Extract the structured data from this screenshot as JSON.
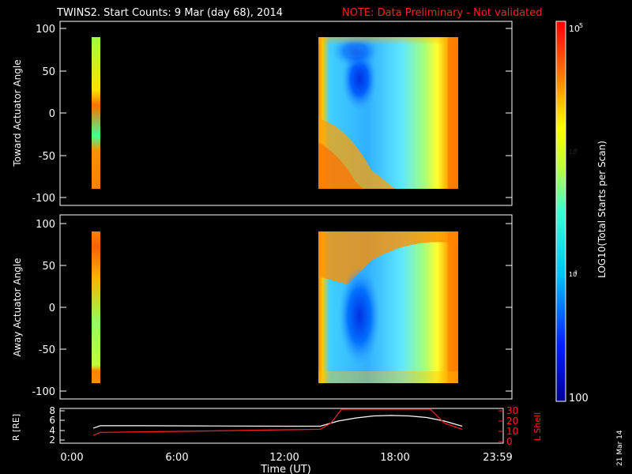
{
  "title": {
    "main": "TWINS2. Start Counts:  9 Mar (day  68), 2014",
    "note": "NOTE: Data Preliminary - Not validated"
  },
  "date_stamp": "21 Mar 14",
  "colorbar": {
    "label": "LOG10(Total Starts per Scan)",
    "ticks": [
      "100",
      "10^3",
      "10^4",
      "10^5"
    ],
    "top_label_main": "10",
    "top_label_exp": "5",
    "mid_labels": [
      {
        "main": "10",
        "exp": "4"
      },
      {
        "main": "10",
        "exp": "3"
      }
    ],
    "bottom_label": "100",
    "min": 100,
    "max": 100000,
    "scale": "log"
  },
  "chart_data": [
    {
      "type": "heatmap",
      "panel": "toward",
      "ylabel": "Toward Actuator Angle",
      "ylim": [
        -100,
        100
      ],
      "yticks": [
        "100",
        "50",
        "0",
        "-50",
        "-100"
      ],
      "xlim_hours": [
        0,
        24
      ],
      "data_intervals_hours": [
        [
          1.3,
          1.7
        ],
        [
          14.1,
          22.1
        ]
      ],
      "angle_range": [
        -90,
        90
      ],
      "description_features": [
        "low counts near +50 deg 15-17h",
        "high counts at edges"
      ]
    },
    {
      "type": "heatmap",
      "panel": "away",
      "ylabel": "Away Actuator Angle",
      "ylim": [
        -100,
        100
      ],
      "yticks": [
        "100",
        "50",
        "0",
        "-50",
        "-100"
      ],
      "xlim_hours": [
        0,
        24
      ],
      "data_intervals_hours": [
        [
          1.3,
          1.7
        ],
        [
          14.1,
          22.1
        ]
      ],
      "angle_range": [
        -90,
        90
      ]
    },
    {
      "type": "line",
      "panel": "ephemeris",
      "ylabel_left": "R [RE]",
      "ylabel_right": "L Shell",
      "yticks_left": [
        "2",
        "4",
        "6",
        "8"
      ],
      "yticks_right": [
        "0",
        "10",
        "20",
        "30"
      ],
      "ylim_left": [
        2,
        8
      ],
      "ylim_right": [
        0,
        30
      ],
      "xlabel": "Time (UT)",
      "xticks": [
        "0:00",
        "6:00",
        "12:00",
        "18:00",
        "23:59"
      ],
      "series": [
        {
          "name": "R",
          "color": "#ffffff",
          "x": [
            1.2,
            1.6,
            4,
            8,
            12,
            14,
            15,
            16,
            17,
            18,
            19,
            20,
            21,
            22
          ],
          "y": [
            4.6,
            5.1,
            5.1,
            5.05,
            5.0,
            5.0,
            6.0,
            6.6,
            7.0,
            7.1,
            7.0,
            6.7,
            6.0,
            5.0
          ]
        },
        {
          "name": "L Shell",
          "color": "#ff2020",
          "x": [
            1.2,
            1.6,
            4,
            8,
            12,
            14,
            14.6,
            15.2,
            20.2,
            21,
            22
          ],
          "y": [
            6,
            9,
            9.5,
            10.5,
            11.5,
            12,
            18,
            32,
            32,
            18,
            12
          ]
        }
      ]
    }
  ]
}
